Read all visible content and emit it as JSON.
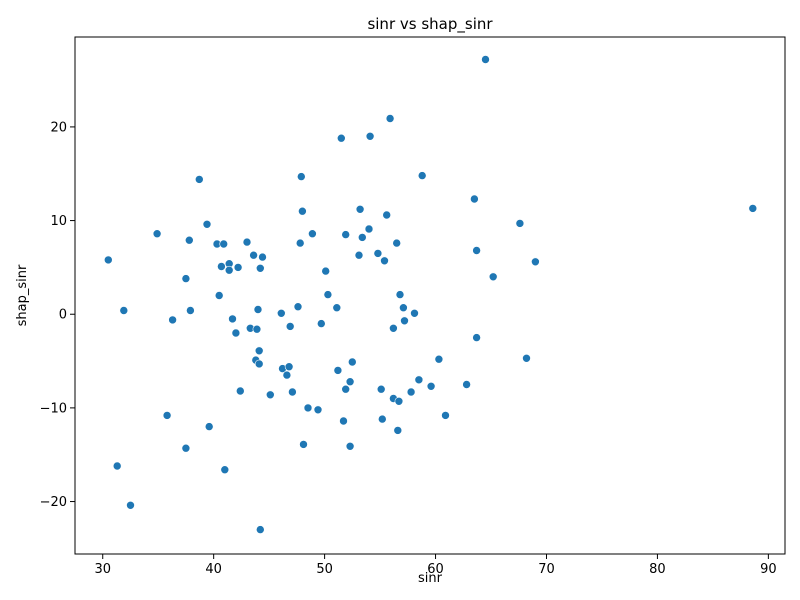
{
  "chart_data": {
    "type": "scatter",
    "title": "sinr vs shap_sinr",
    "xlabel": "sinr",
    "ylabel": "shap_sinr",
    "xlim": [
      27.5,
      91.5
    ],
    "ylim": [
      -25.6,
      29.6
    ],
    "xticks": [
      30,
      40,
      50,
      60,
      70,
      80,
      90
    ],
    "yticks": [
      -20,
      -10,
      0,
      10,
      20
    ],
    "ytick_labels": [
      "−20",
      "−10",
      "0",
      "10",
      "20"
    ],
    "grid": false,
    "legend": false,
    "marker_color": "#1f77b4",
    "points": [
      [
        30.5,
        5.8
      ],
      [
        31.9,
        0.4
      ],
      [
        31.3,
        -16.2
      ],
      [
        32.5,
        -20.4
      ],
      [
        34.9,
        8.6
      ],
      [
        35.8,
        -10.8
      ],
      [
        36.3,
        -0.6
      ],
      [
        37.5,
        3.8
      ],
      [
        37.5,
        -14.3
      ],
      [
        37.8,
        7.9
      ],
      [
        37.9,
        0.4
      ],
      [
        38.7,
        14.4
      ],
      [
        39.4,
        9.6
      ],
      [
        39.6,
        -12.0
      ],
      [
        40.3,
        7.5
      ],
      [
        40.5,
        2.0
      ],
      [
        40.7,
        5.1
      ],
      [
        40.9,
        7.5
      ],
      [
        41.0,
        -16.6
      ],
      [
        41.4,
        5.4
      ],
      [
        41.4,
        4.7
      ],
      [
        41.7,
        -0.5
      ],
      [
        42.0,
        -2.0
      ],
      [
        42.2,
        5.0
      ],
      [
        42.4,
        -8.2
      ],
      [
        43.0,
        7.7
      ],
      [
        43.3,
        -1.5
      ],
      [
        43.6,
        6.3
      ],
      [
        43.8,
        -4.9
      ],
      [
        43.9,
        -1.6
      ],
      [
        44.0,
        0.5
      ],
      [
        44.1,
        -3.9
      ],
      [
        44.1,
        -5.3
      ],
      [
        44.2,
        4.9
      ],
      [
        44.4,
        6.1
      ],
      [
        44.2,
        -23.0
      ],
      [
        45.1,
        -8.6
      ],
      [
        46.1,
        0.1
      ],
      [
        46.2,
        -5.8
      ],
      [
        46.6,
        -6.5
      ],
      [
        46.8,
        -5.6
      ],
      [
        46.9,
        -1.3
      ],
      [
        47.1,
        -8.3
      ],
      [
        47.6,
        0.8
      ],
      [
        47.8,
        7.6
      ],
      [
        47.9,
        14.7
      ],
      [
        48.0,
        11.0
      ],
      [
        48.1,
        -13.9
      ],
      [
        48.5,
        -10.0
      ],
      [
        48.9,
        8.6
      ],
      [
        49.4,
        -10.2
      ],
      [
        49.7,
        -1.0
      ],
      [
        50.1,
        4.6
      ],
      [
        50.3,
        2.1
      ],
      [
        51.1,
        0.7
      ],
      [
        51.2,
        -6.0
      ],
      [
        51.5,
        18.8
      ],
      [
        51.7,
        -11.4
      ],
      [
        51.9,
        8.5
      ],
      [
        51.9,
        -8.0
      ],
      [
        52.3,
        -7.2
      ],
      [
        52.3,
        -14.1
      ],
      [
        52.5,
        -5.1
      ],
      [
        53.1,
        6.3
      ],
      [
        53.2,
        11.2
      ],
      [
        53.4,
        8.2
      ],
      [
        54.0,
        9.1
      ],
      [
        54.1,
        19.0
      ],
      [
        54.8,
        6.5
      ],
      [
        55.1,
        -8.0
      ],
      [
        55.2,
        -11.2
      ],
      [
        55.4,
        5.7
      ],
      [
        55.6,
        10.6
      ],
      [
        55.9,
        20.9
      ],
      [
        56.2,
        -1.5
      ],
      [
        56.2,
        -9.0
      ],
      [
        56.5,
        7.6
      ],
      [
        56.6,
        -12.4
      ],
      [
        56.7,
        -9.3
      ],
      [
        56.8,
        2.1
      ],
      [
        57.1,
        0.7
      ],
      [
        57.2,
        -0.7
      ],
      [
        57.8,
        -8.3
      ],
      [
        58.1,
        0.1
      ],
      [
        58.5,
        -7.0
      ],
      [
        58.8,
        14.8
      ],
      [
        59.6,
        -7.7
      ],
      [
        60.3,
        -4.8
      ],
      [
        60.9,
        -10.8
      ],
      [
        62.8,
        -7.5
      ],
      [
        63.5,
        12.3
      ],
      [
        63.7,
        6.8
      ],
      [
        63.7,
        -2.5
      ],
      [
        64.5,
        27.2
      ],
      [
        65.2,
        4.0
      ],
      [
        67.6,
        9.7
      ],
      [
        68.2,
        -4.7
      ],
      [
        69.0,
        5.6
      ],
      [
        88.6,
        11.3
      ]
    ]
  }
}
